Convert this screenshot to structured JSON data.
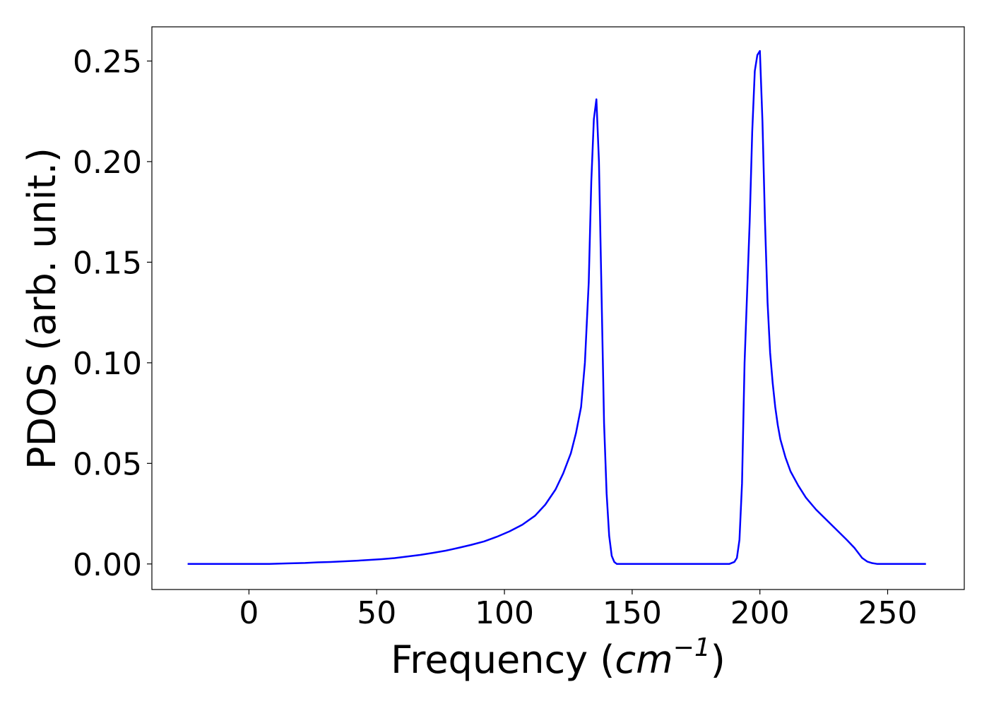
{
  "chart_data": {
    "type": "line",
    "title": "",
    "xlabel": "Frequency (",
    "xlabel_math_base": "cm",
    "xlabel_math_sup": "−1",
    "xlabel_close": ")",
    "ylabel": "PDOS (arb. unit.)",
    "xlim": [
      -38,
      280
    ],
    "ylim": [
      -0.0127,
      0.267
    ],
    "xticks": [
      0,
      50,
      100,
      150,
      200,
      250
    ],
    "xtick_labels": [
      "0",
      "50",
      "100",
      "150",
      "200",
      "250"
    ],
    "yticks": [
      0.0,
      0.05,
      0.1,
      0.15,
      0.2,
      0.25
    ],
    "ytick_labels": [
      "0.00",
      "0.05",
      "0.10",
      "0.15",
      "0.20",
      "0.25"
    ],
    "grid": false,
    "line_color": "#0000ff",
    "series": [
      {
        "x": [
          -24,
          0,
          8,
          15,
          22,
          27,
          32,
          37,
          42,
          47,
          52,
          57,
          62,
          67,
          72,
          77,
          82,
          87,
          92,
          97,
          102,
          107,
          112,
          116,
          120,
          123,
          126,
          128,
          130,
          131.5,
          133,
          134,
          135,
          136,
          137,
          138,
          139,
          140,
          141,
          142,
          143,
          144,
          146,
          150,
          160,
          170,
          180,
          188,
          190,
          191,
          192,
          193,
          194,
          196,
          197,
          198,
          199,
          200,
          201,
          202,
          203,
          204,
          205,
          206,
          207,
          208,
          210,
          212,
          215,
          218,
          222,
          226,
          230,
          234,
          237,
          240,
          242,
          244,
          246,
          250,
          256,
          265
        ],
        "y": [
          0.0,
          0.0,
          0.0,
          0.0003,
          0.0005,
          0.0008,
          0.001,
          0.0013,
          0.0016,
          0.002,
          0.0024,
          0.0029,
          0.0037,
          0.0045,
          0.0055,
          0.0066,
          0.008,
          0.0095,
          0.0112,
          0.0135,
          0.0162,
          0.0195,
          0.024,
          0.0295,
          0.037,
          0.045,
          0.055,
          0.065,
          0.078,
          0.1,
          0.14,
          0.19,
          0.221,
          0.231,
          0.2,
          0.135,
          0.07,
          0.035,
          0.014,
          0.004,
          0.001,
          0.0,
          0.0,
          0.0,
          0.0,
          0.0,
          0.0,
          0.0,
          0.001,
          0.003,
          0.012,
          0.04,
          0.1,
          0.17,
          0.215,
          0.245,
          0.253,
          0.255,
          0.22,
          0.17,
          0.13,
          0.105,
          0.09,
          0.078,
          0.069,
          0.062,
          0.053,
          0.046,
          0.039,
          0.033,
          0.027,
          0.022,
          0.017,
          0.012,
          0.008,
          0.003,
          0.0012,
          0.0004,
          0.0,
          0.0,
          0.0,
          0.0
        ]
      }
    ]
  }
}
